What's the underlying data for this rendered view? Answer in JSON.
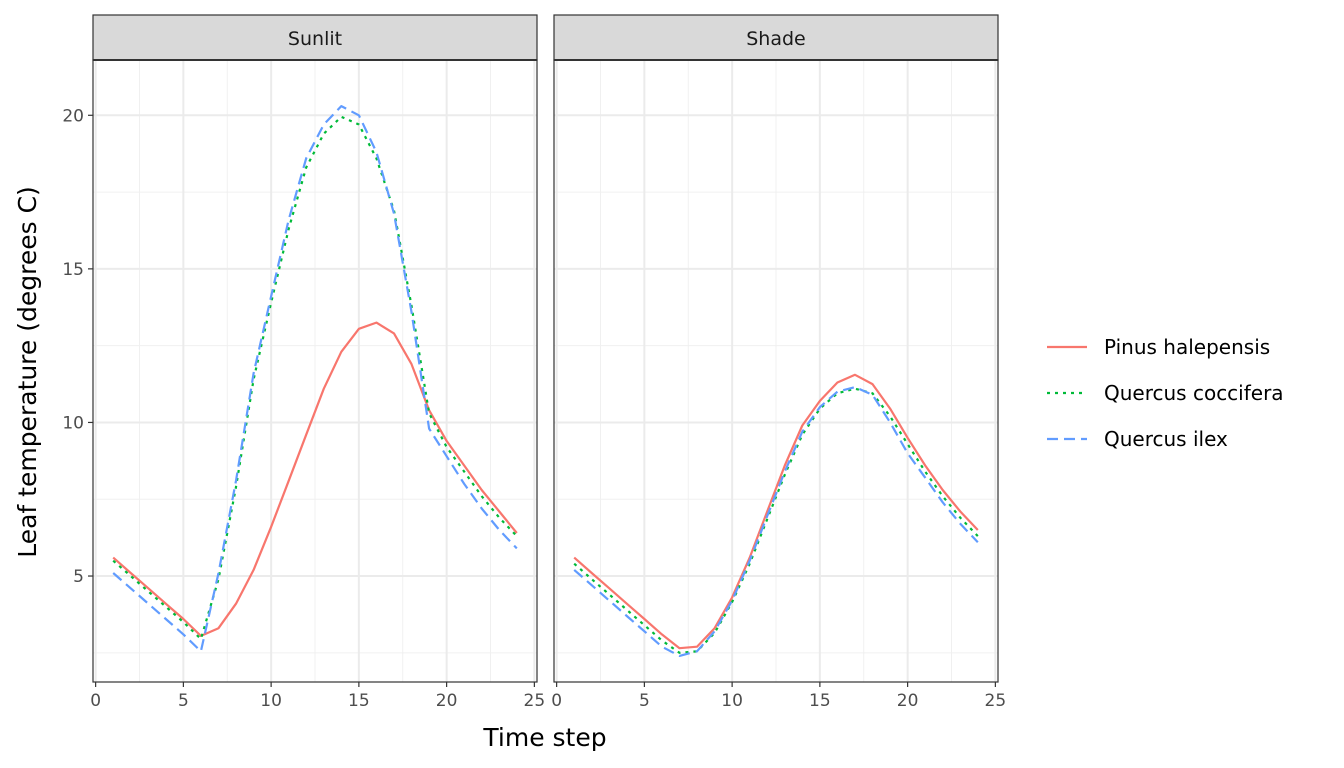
{
  "chart_data": {
    "type": "line",
    "xlabel": "Time step",
    "ylabel": "Leaf temperature (degrees C)",
    "xlim": [
      -0.15,
      25.15
    ],
    "ylim": [
      1.55,
      21.8
    ],
    "x_ticks": [
      0,
      5,
      10,
      15,
      20,
      25
    ],
    "y_ticks": [
      5,
      10,
      15,
      20
    ],
    "grid": true,
    "legend_position": "right",
    "panels": [
      {
        "title": "Sunlit",
        "series": [
          {
            "name": "Pinus halepensis",
            "color": "#F8766D",
            "linetype": "solid",
            "x": [
              1,
              2,
              3,
              4,
              5,
              6,
              7,
              8,
              9,
              10,
              11,
              12,
              13,
              14,
              15,
              16,
              17,
              18,
              19,
              20,
              21,
              22,
              23,
              24
            ],
            "values": [
              5.6,
              5.1,
              4.6,
              4.1,
              3.6,
              3.05,
              3.3,
              4.1,
              5.2,
              6.6,
              8.1,
              9.6,
              11.1,
              12.3,
              13.05,
              13.25,
              12.9,
              11.9,
              10.4,
              9.4,
              8.6,
              7.8,
              7.1,
              6.4
            ]
          },
          {
            "name": "Quercus coccifera",
            "color": "#00BA38",
            "linetype": "dotted",
            "x": [
              1,
              2,
              3,
              4,
              5,
              6,
              7,
              8,
              9,
              10,
              11,
              12,
              13,
              14,
              15,
              16,
              17,
              18,
              19,
              20,
              21,
              22,
              23,
              24
            ],
            "values": [
              5.5,
              5.0,
              4.5,
              4.0,
              3.5,
              2.95,
              4.9,
              7.9,
              11.4,
              13.9,
              16.3,
              18.3,
              19.4,
              19.95,
              19.7,
              18.6,
              16.9,
              13.8,
              10.3,
              9.2,
              8.4,
              7.6,
              6.9,
              6.3
            ]
          },
          {
            "name": "Quercus ilex",
            "color": "#619CFF",
            "linetype": "dashed",
            "x": [
              1,
              2,
              3,
              4,
              5,
              6,
              7,
              8,
              9,
              10,
              11,
              12,
              13,
              14,
              15,
              16,
              17,
              18,
              19,
              20,
              21,
              22,
              23,
              24
            ],
            "values": [
              5.1,
              4.6,
              4.1,
              3.6,
              3.1,
              2.55,
              5.1,
              8.1,
              11.6,
              14.1,
              16.6,
              18.6,
              19.7,
              20.3,
              20.0,
              18.8,
              16.8,
              13.6,
              9.8,
              8.9,
              8.0,
              7.2,
              6.5,
              5.9
            ]
          }
        ]
      },
      {
        "title": "Shade",
        "series": [
          {
            "name": "Pinus halepensis",
            "color": "#F8766D",
            "linetype": "solid",
            "x": [
              1,
              2,
              3,
              4,
              5,
              6,
              7,
              8,
              9,
              10,
              11,
              12,
              13,
              14,
              15,
              16,
              17,
              18,
              19,
              20,
              21,
              22,
              23,
              24
            ],
            "values": [
              5.6,
              5.1,
              4.6,
              4.1,
              3.6,
              3.1,
              2.65,
              2.7,
              3.3,
              4.3,
              5.6,
              7.1,
              8.6,
              9.9,
              10.7,
              11.3,
              11.55,
              11.25,
              10.45,
              9.5,
              8.6,
              7.8,
              7.1,
              6.5
            ]
          },
          {
            "name": "Quercus coccifera",
            "color": "#00BA38",
            "linetype": "dotted",
            "x": [
              1,
              2,
              3,
              4,
              5,
              6,
              7,
              8,
              9,
              10,
              11,
              12,
              13,
              14,
              15,
              16,
              17,
              18,
              19,
              20,
              21,
              22,
              23,
              24
            ],
            "values": [
              5.4,
              4.9,
              4.4,
              3.9,
              3.4,
              2.9,
              2.5,
              2.55,
              3.15,
              4.15,
              5.4,
              6.85,
              8.3,
              9.6,
              10.45,
              10.95,
              11.1,
              10.95,
              10.2,
              9.3,
              8.4,
              7.6,
              6.9,
              6.3
            ]
          },
          {
            "name": "Quercus ilex",
            "color": "#619CFF",
            "linetype": "dashed",
            "x": [
              1,
              2,
              3,
              4,
              5,
              6,
              7,
              8,
              9,
              10,
              11,
              12,
              13,
              14,
              15,
              16,
              17,
              18,
              19,
              20,
              21,
              22,
              23,
              24
            ],
            "values": [
              5.2,
              4.7,
              4.2,
              3.7,
              3.2,
              2.7,
              2.4,
              2.55,
              3.2,
              4.2,
              5.5,
              6.95,
              8.4,
              9.7,
              10.5,
              11.0,
              11.15,
              10.9,
              10.0,
              9.0,
              8.2,
              7.4,
              6.7,
              6.1
            ]
          }
        ]
      }
    ]
  }
}
